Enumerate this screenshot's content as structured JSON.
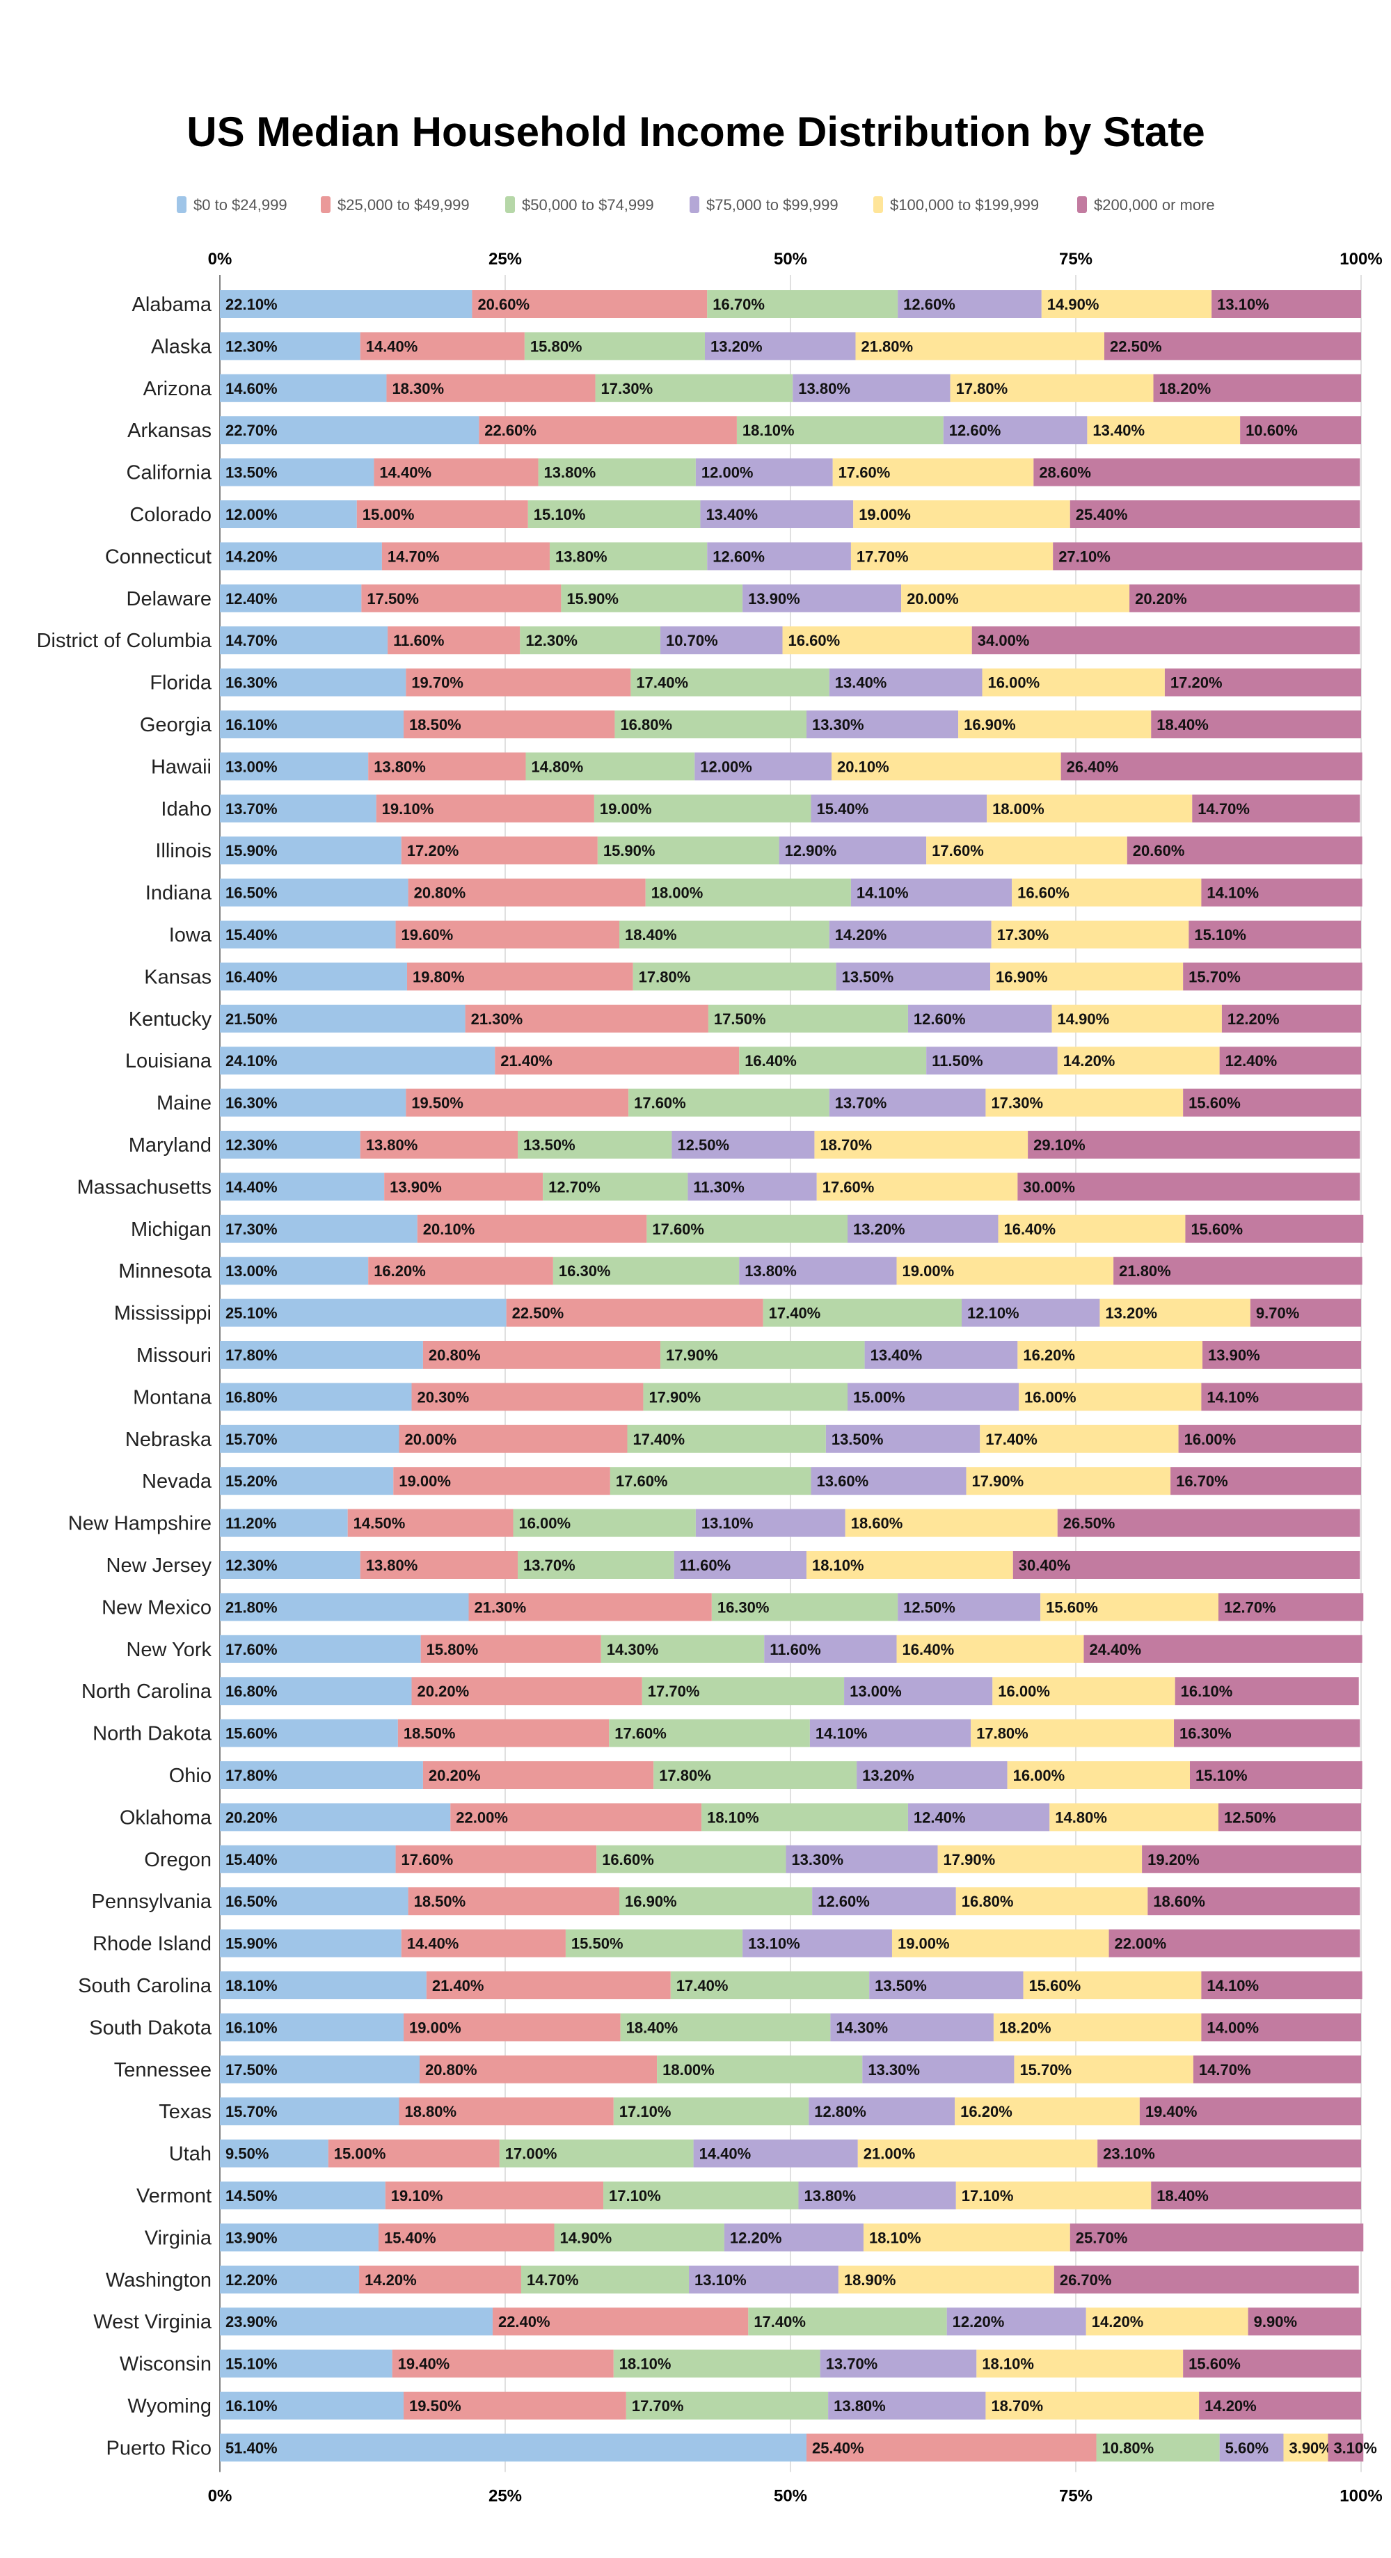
{
  "chart_data": {
    "type": "bar",
    "orientation": "horizontal",
    "stacked": true,
    "title": "US Median Household Income Distribution by State",
    "xlim": [
      0,
      100
    ],
    "x_ticks": [
      "0%",
      "25%",
      "50%",
      "75%",
      "100%"
    ],
    "x_tick_values": [
      0,
      25,
      50,
      75,
      100
    ],
    "grid": true,
    "legend_position": "top",
    "value_suffix": "%",
    "series": [
      {
        "name": "$0 to $24,999",
        "color": "#9fc5e8"
      },
      {
        "name": "$25,000 to $49,999",
        "color": "#ea9999"
      },
      {
        "name": "$50,000 to $74,999",
        "color": "#b6d7a8"
      },
      {
        "name": "$75,000 to $99,999",
        "color": "#b4a7d6"
      },
      {
        "name": "$100,000 to $199,999",
        "color": "#ffe599"
      },
      {
        "name": "$200,000 or more",
        "color": "#c27ba0"
      }
    ],
    "rows": [
      {
        "state": "Alabama",
        "values": [
          22.1,
          20.6,
          16.7,
          12.6,
          14.9,
          13.1
        ]
      },
      {
        "state": "Alaska",
        "values": [
          12.3,
          14.4,
          15.8,
          13.2,
          21.8,
          22.5
        ]
      },
      {
        "state": "Arizona",
        "values": [
          14.6,
          18.3,
          17.3,
          13.8,
          17.8,
          18.2
        ]
      },
      {
        "state": "Arkansas",
        "values": [
          22.7,
          22.6,
          18.1,
          12.6,
          13.4,
          10.6
        ]
      },
      {
        "state": "California",
        "values": [
          13.5,
          14.4,
          13.8,
          12.0,
          17.6,
          28.6
        ]
      },
      {
        "state": "Colorado",
        "values": [
          12.0,
          15.0,
          15.1,
          13.4,
          19.0,
          25.4
        ]
      },
      {
        "state": "Connecticut",
        "values": [
          14.2,
          14.7,
          13.8,
          12.6,
          17.7,
          27.1
        ]
      },
      {
        "state": "Delaware",
        "values": [
          12.4,
          17.5,
          15.9,
          13.9,
          20.0,
          20.2
        ]
      },
      {
        "state": "District of Columbia",
        "values": [
          14.7,
          11.6,
          12.3,
          10.7,
          16.6,
          34.0
        ]
      },
      {
        "state": "Florida",
        "values": [
          16.3,
          19.7,
          17.4,
          13.4,
          16.0,
          17.2
        ]
      },
      {
        "state": "Georgia",
        "values": [
          16.1,
          18.5,
          16.8,
          13.3,
          16.9,
          18.4
        ]
      },
      {
        "state": "Hawaii",
        "values": [
          13.0,
          13.8,
          14.8,
          12.0,
          20.1,
          26.4
        ]
      },
      {
        "state": "Idaho",
        "values": [
          13.7,
          19.1,
          19.0,
          15.4,
          18.0,
          14.7
        ]
      },
      {
        "state": "Illinois",
        "values": [
          15.9,
          17.2,
          15.9,
          12.9,
          17.6,
          20.6
        ]
      },
      {
        "state": "Indiana",
        "values": [
          16.5,
          20.8,
          18.0,
          14.1,
          16.6,
          14.1
        ]
      },
      {
        "state": "Iowa",
        "values": [
          15.4,
          19.6,
          18.4,
          14.2,
          17.3,
          15.1
        ]
      },
      {
        "state": "Kansas",
        "values": [
          16.4,
          19.8,
          17.8,
          13.5,
          16.9,
          15.7
        ]
      },
      {
        "state": "Kentucky",
        "values": [
          21.5,
          21.3,
          17.5,
          12.6,
          14.9,
          12.2
        ]
      },
      {
        "state": "Louisiana",
        "values": [
          24.1,
          21.4,
          16.4,
          11.5,
          14.2,
          12.4
        ]
      },
      {
        "state": "Maine",
        "values": [
          16.3,
          19.5,
          17.6,
          13.7,
          17.3,
          15.6
        ]
      },
      {
        "state": "Maryland",
        "values": [
          12.3,
          13.8,
          13.5,
          12.5,
          18.7,
          29.1
        ]
      },
      {
        "state": "Massachusetts",
        "values": [
          14.4,
          13.9,
          12.7,
          11.3,
          17.6,
          30.0
        ]
      },
      {
        "state": "Michigan",
        "values": [
          17.3,
          20.1,
          17.6,
          13.2,
          16.4,
          15.6
        ]
      },
      {
        "state": "Minnesota",
        "values": [
          13.0,
          16.2,
          16.3,
          13.8,
          19.0,
          21.8
        ]
      },
      {
        "state": "Mississippi",
        "values": [
          25.1,
          22.5,
          17.4,
          12.1,
          13.2,
          9.7
        ]
      },
      {
        "state": "Missouri",
        "values": [
          17.8,
          20.8,
          17.9,
          13.4,
          16.2,
          13.9
        ]
      },
      {
        "state": "Montana",
        "values": [
          16.8,
          20.3,
          17.9,
          15.0,
          16.0,
          14.1
        ]
      },
      {
        "state": "Nebraska",
        "values": [
          15.7,
          20.0,
          17.4,
          13.5,
          17.4,
          16.0
        ]
      },
      {
        "state": "Nevada",
        "values": [
          15.2,
          19.0,
          17.6,
          13.6,
          17.9,
          16.7
        ]
      },
      {
        "state": "New Hampshire",
        "values": [
          11.2,
          14.5,
          16.0,
          13.1,
          18.6,
          26.5
        ]
      },
      {
        "state": "New Jersey",
        "values": [
          12.3,
          13.8,
          13.7,
          11.6,
          18.1,
          30.4
        ]
      },
      {
        "state": "New Mexico",
        "values": [
          21.8,
          21.3,
          16.3,
          12.5,
          15.6,
          12.7
        ]
      },
      {
        "state": "New York",
        "values": [
          17.6,
          15.8,
          14.3,
          11.6,
          16.4,
          24.4
        ]
      },
      {
        "state": "North Carolina",
        "values": [
          16.8,
          20.2,
          17.7,
          13.0,
          16.0,
          16.1
        ]
      },
      {
        "state": "North Dakota",
        "values": [
          15.6,
          18.5,
          17.6,
          14.1,
          17.8,
          16.3
        ]
      },
      {
        "state": "Ohio",
        "values": [
          17.8,
          20.2,
          17.8,
          13.2,
          16.0,
          15.1
        ]
      },
      {
        "state": "Oklahoma",
        "values": [
          20.2,
          22.0,
          18.1,
          12.4,
          14.8,
          12.5
        ]
      },
      {
        "state": "Oregon",
        "values": [
          15.4,
          17.6,
          16.6,
          13.3,
          17.9,
          19.2
        ]
      },
      {
        "state": "Pennsylvania",
        "values": [
          16.5,
          18.5,
          16.9,
          12.6,
          16.8,
          18.6
        ]
      },
      {
        "state": "Rhode Island",
        "values": [
          15.9,
          14.4,
          15.5,
          13.1,
          19.0,
          22.0
        ]
      },
      {
        "state": "South Carolina",
        "values": [
          18.1,
          21.4,
          17.4,
          13.5,
          15.6,
          14.1
        ]
      },
      {
        "state": "South Dakota",
        "values": [
          16.1,
          19.0,
          18.4,
          14.3,
          18.2,
          14.0
        ]
      },
      {
        "state": "Tennessee",
        "values": [
          17.5,
          20.8,
          18.0,
          13.3,
          15.7,
          14.7
        ]
      },
      {
        "state": "Texas",
        "values": [
          15.7,
          18.8,
          17.1,
          12.8,
          16.2,
          19.4
        ]
      },
      {
        "state": "Utah",
        "values": [
          9.5,
          15.0,
          17.0,
          14.4,
          21.0,
          23.1
        ]
      },
      {
        "state": "Vermont",
        "values": [
          14.5,
          19.1,
          17.1,
          13.8,
          17.1,
          18.4
        ]
      },
      {
        "state": "Virginia",
        "values": [
          13.9,
          15.4,
          14.9,
          12.2,
          18.1,
          25.7
        ]
      },
      {
        "state": "Washington",
        "values": [
          12.2,
          14.2,
          14.7,
          13.1,
          18.9,
          26.7
        ]
      },
      {
        "state": "West Virginia",
        "values": [
          23.9,
          22.4,
          17.4,
          12.2,
          14.2,
          9.9
        ]
      },
      {
        "state": "Wisconsin",
        "values": [
          15.1,
          19.4,
          18.1,
          13.7,
          18.1,
          15.6
        ]
      },
      {
        "state": "Wyoming",
        "values": [
          16.1,
          19.5,
          17.7,
          13.8,
          18.7,
          14.2
        ]
      },
      {
        "state": "Puerto Rico",
        "values": [
          51.4,
          25.4,
          10.8,
          5.6,
          3.9,
          3.1
        ]
      }
    ]
  }
}
